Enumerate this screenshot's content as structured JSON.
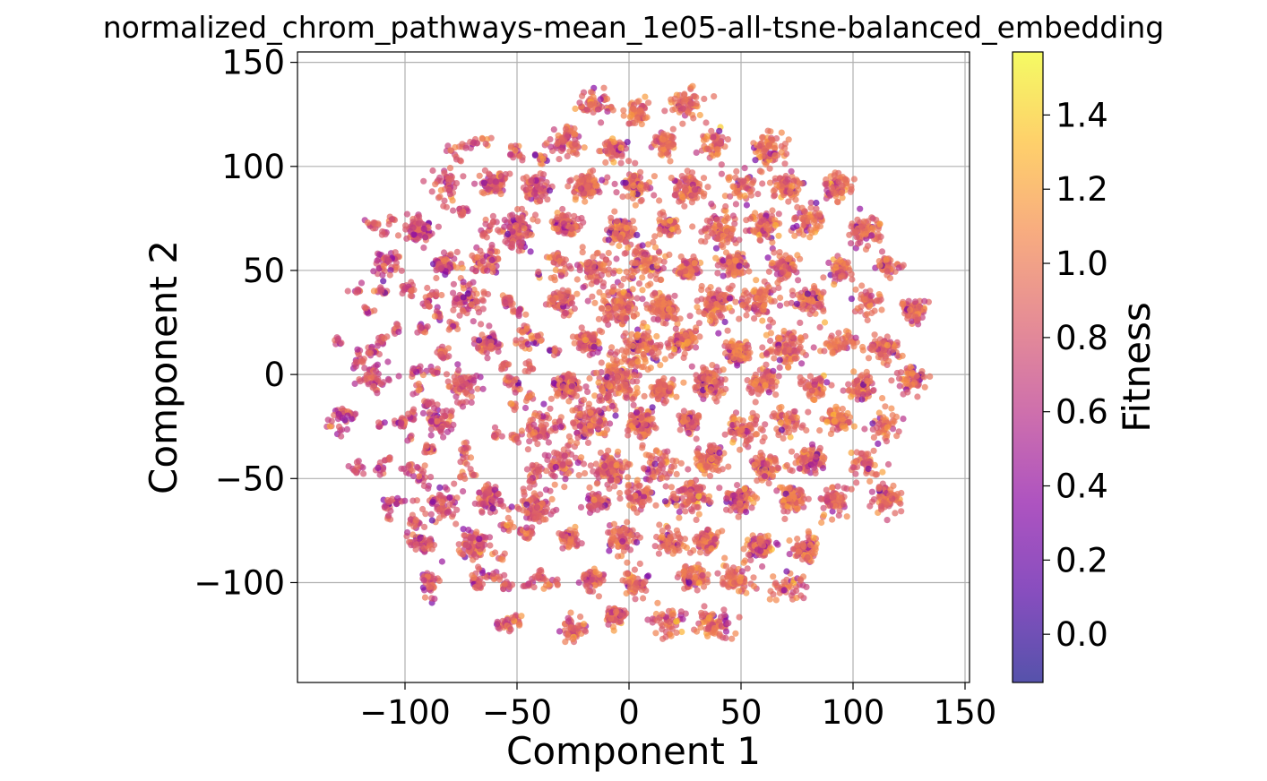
{
  "chart_data": {
    "type": "scatter",
    "title": "normalized_chrom_pathways-mean_1e05-all-tsne-balanced_embedding",
    "xlabel": "Component 1",
    "ylabel": "Component 2",
    "xlim": [
      -148,
      152
    ],
    "ylim": [
      -148,
      155
    ],
    "x_ticks": [
      -100,
      -50,
      0,
      50,
      100,
      150
    ],
    "y_ticks": [
      -100,
      -50,
      0,
      50,
      100,
      150
    ],
    "x_tick_labels": [
      "−100",
      "−50",
      "0",
      "50",
      "100",
      "150"
    ],
    "y_tick_labels": [
      "−100",
      "−50",
      "0",
      "50",
      "100",
      "150"
    ],
    "grid": true,
    "colormap": "plasma",
    "point_alpha": 0.7,
    "embedding_radius": 138,
    "colorbar": {
      "label": "Fitness",
      "min": -0.13,
      "max": 1.57,
      "ticks": [
        0.0,
        0.2,
        0.4,
        0.6,
        0.8,
        1.0,
        1.2,
        1.4
      ],
      "tick_labels": [
        "0.0",
        "0.2",
        "0.4",
        "0.6",
        "0.8",
        "1.0",
        "1.2",
        "1.4"
      ]
    }
  }
}
